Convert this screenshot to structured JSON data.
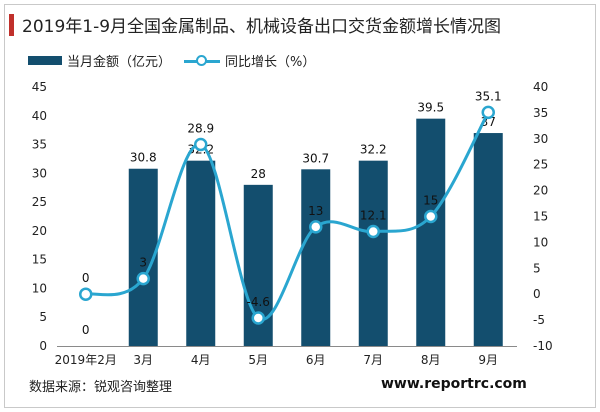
{
  "title": "2019年1-9月全国金属制品、机械设备出口交货金额增长情况图",
  "source": "数据来源：锐观咨询整理",
  "website": "www.reportrc.com",
  "colors": {
    "bar": "#134e6e",
    "line": "#2aa6d0",
    "accent": "#c0302b"
  },
  "chart_data": {
    "type": "bar",
    "categories": [
      "2019年2月",
      "3月",
      "4月",
      "5月",
      "6月",
      "7月",
      "8月",
      "9月"
    ],
    "series": [
      {
        "name": "当月金额（亿元）",
        "type": "bar",
        "axis": "left",
        "values": [
          0,
          30.8,
          32.2,
          28,
          30.7,
          32.2,
          39.5,
          37
        ],
        "labels": [
          "0",
          "30.8",
          "32.2",
          "28",
          "30.7",
          "32.2",
          "39.5",
          "37"
        ]
      },
      {
        "name": "同比增长（%）",
        "type": "line",
        "axis": "right",
        "values": [
          0,
          3,
          28.9,
          -4.6,
          13,
          12.1,
          15,
          35.1
        ],
        "labels": [
          "0",
          "3",
          "28.9",
          "-4.6",
          "13",
          "12.1",
          "15",
          "35.1"
        ]
      }
    ],
    "y_left": {
      "min": 0,
      "max": 45,
      "step": 5,
      "ticks": [
        "0",
        "5",
        "10",
        "15",
        "20",
        "25",
        "30",
        "35",
        "40",
        "45"
      ]
    },
    "y_right": {
      "min": -10,
      "max": 40,
      "step": 5,
      "ticks": [
        "-10",
        "-5",
        "0",
        "5",
        "10",
        "15",
        "20",
        "25",
        "30",
        "35",
        "40"
      ]
    },
    "legend": "top-left",
    "grid": false
  }
}
